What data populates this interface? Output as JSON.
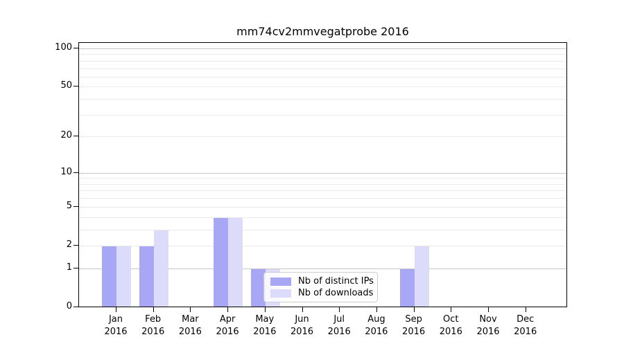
{
  "chart_data": {
    "type": "bar",
    "title": "mm74cv2mmvegatprobe 2016",
    "categories": [
      "Jan",
      "Feb",
      "Mar",
      "Apr",
      "May",
      "Jun",
      "Jul",
      "Aug",
      "Sep",
      "Oct",
      "Nov",
      "Dec"
    ],
    "year_label": "2016",
    "series": [
      {
        "name": "Nb of distinct IPs",
        "color": "#a7a7f5",
        "values": [
          2,
          2,
          0,
          4,
          1,
          0,
          0,
          0,
          1,
          0,
          0,
          0
        ]
      },
      {
        "name": "Nb of downloads",
        "color": "#dcdcfa",
        "values": [
          2,
          3,
          0,
          4,
          1,
          0,
          0,
          0,
          2,
          0,
          0,
          0
        ]
      }
    ],
    "y_axis": {
      "scale": "log1p",
      "ylim": [
        0,
        100
      ],
      "tick_values": [
        0,
        1,
        2,
        5,
        10,
        20,
        50,
        100
      ],
      "major_grid_values": [
        1,
        10,
        100
      ],
      "minor_grid_values": [
        2,
        3,
        4,
        5,
        6,
        7,
        8,
        9,
        20,
        30,
        40,
        50,
        60,
        70,
        80,
        90
      ]
    },
    "xlabel": "",
    "ylabel": "",
    "grid": true,
    "legend": {
      "position": "lower center",
      "items": [
        "Nb of distinct IPs",
        "Nb of downloads"
      ]
    }
  },
  "colors": {
    "grid_major": "#c6c6c6",
    "grid_minor": "#e9e9e9",
    "axis": "#000000",
    "legend_border": "#cccccc"
  }
}
